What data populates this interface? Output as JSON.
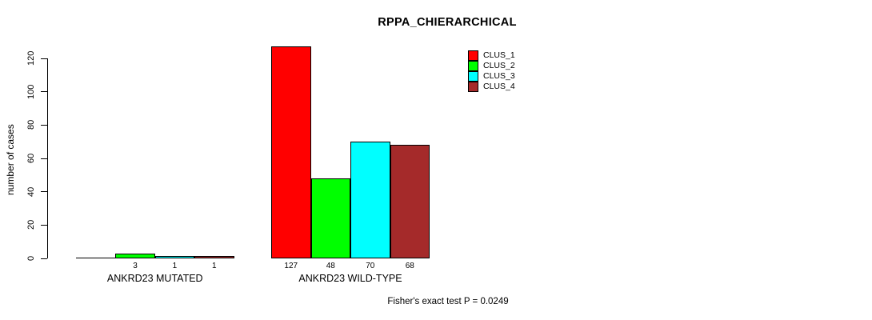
{
  "chart_data": {
    "type": "bar",
    "title": "RPPA_CHIERARCHICAL",
    "ylabel": "number of cases",
    "ylim": [
      0,
      120
    ],
    "yticks": [
      0,
      20,
      40,
      60,
      80,
      100,
      120
    ],
    "grid": false,
    "categories": [
      "ANKRD23 MUTATED",
      "ANKRD23 WILD-TYPE"
    ],
    "series": [
      {
        "name": "CLUS_1",
        "color": "#FF0000",
        "values": [
          0,
          127
        ]
      },
      {
        "name": "CLUS_2",
        "color": "#00FF00",
        "values": [
          3,
          48
        ]
      },
      {
        "name": "CLUS_3",
        "color": "#00FFFF",
        "values": [
          1,
          70
        ]
      },
      {
        "name": "CLUS_4",
        "color": "#A52A2A",
        "values": [
          1,
          68
        ]
      }
    ],
    "bar_value_labels": {
      "ANKRD23 MUTATED": [
        3,
        1,
        1
      ],
      "ANKRD23 WILD-TYPE": [
        127,
        48,
        70,
        68
      ]
    },
    "legend_position": "top-right-inside",
    "annotation": "Fisher's exact test P = 0.0249"
  },
  "colors": {
    "background": "#FFFFFF",
    "axis": "#000000",
    "text": "#000000"
  }
}
